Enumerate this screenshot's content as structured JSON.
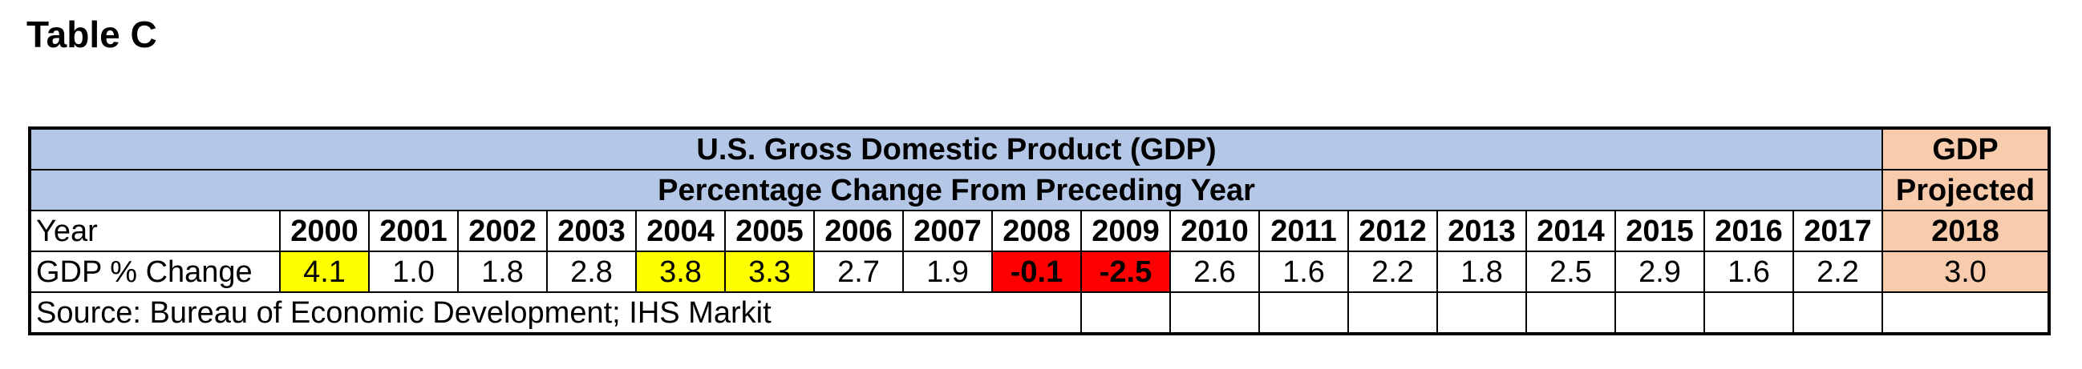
{
  "title": "Table C",
  "table": {
    "header_line1": "U.S. Gross Domestic Product (GDP)",
    "header_line2": "Percentage Change From Preceding Year",
    "proj_header_line1": "GDP",
    "proj_header_line2": "Projected",
    "row_label_year": "Year",
    "row_label_change": "GDP % Change",
    "years": [
      "2000",
      "2001",
      "2002",
      "2003",
      "2004",
      "2005",
      "2006",
      "2007",
      "2008",
      "2009",
      "2010",
      "2011",
      "2012",
      "2013",
      "2014",
      "2015",
      "2016",
      "2017"
    ],
    "values": [
      "4.1",
      "1.0",
      "1.8",
      "2.8",
      "3.8",
      "3.3",
      "2.7",
      "1.9",
      "-0.1",
      "-2.5",
      "2.6",
      "1.6",
      "2.2",
      "1.8",
      "2.5",
      "2.9",
      "1.6",
      "2.2"
    ],
    "highlights": [
      "yellow",
      "",
      "",
      "",
      "yellow",
      "yellow",
      "",
      "",
      "red",
      "red",
      "",
      "",
      "",
      "",
      "",
      "",
      "",
      ""
    ],
    "projected_year": "2018",
    "projected_value": "3.0",
    "source": "Source: Bureau of Economic Development; IHS Markit"
  },
  "colors": {
    "header_blue": "#b4c7e7",
    "projected_orange": "#f8cbad",
    "highlight_yellow": "#ffff00",
    "highlight_red": "#ff0000"
  }
}
